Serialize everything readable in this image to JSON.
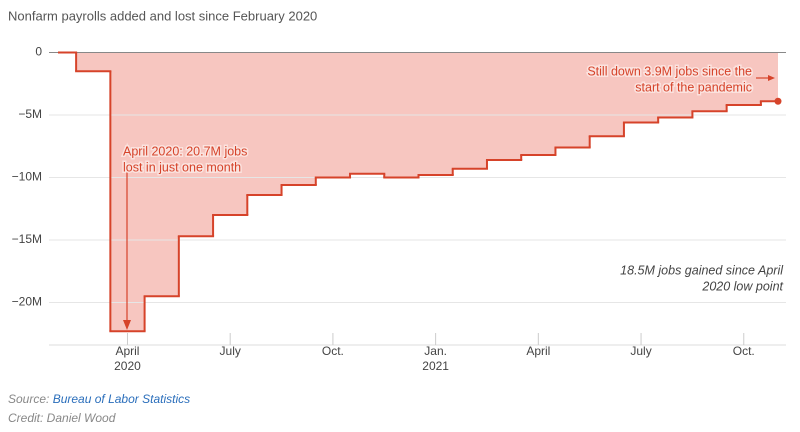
{
  "chart_data": {
    "type": "step-area",
    "title": "Nonfarm payrolls added and lost since February 2020",
    "categories": [
      null,
      null,
      "April",
      null,
      null,
      "July",
      null,
      null,
      "Oct.",
      null,
      null,
      "Jan.",
      null,
      null,
      "April",
      null,
      null,
      "July",
      null,
      null,
      "Oct.",
      null
    ],
    "category_years": [
      null,
      null,
      "2020",
      null,
      null,
      null,
      null,
      null,
      null,
      null,
      null,
      "2021",
      null,
      null,
      null,
      null,
      null,
      null,
      null,
      null,
      null,
      null
    ],
    "values": [
      0,
      -1.5,
      -22.3,
      -19.5,
      -14.7,
      -13.0,
      -11.4,
      -10.6,
      -10.0,
      -9.7,
      -10.0,
      -9.8,
      -9.3,
      -8.6,
      -8.2,
      -7.6,
      -6.7,
      -5.6,
      -5.2,
      -4.7,
      -4.2,
      -3.9
    ],
    "color": "#d6432a",
    "fill_color": "#f7c6c0",
    "ylim": [
      -23.4,
      1
    ],
    "yticks": [
      0,
      {
        "value": -5,
        "label": "−5M"
      },
      {
        "value": -10,
        "label": "−10M"
      },
      {
        "value": -15,
        "label": "−15M"
      },
      {
        "value": -20,
        "label": "−20M"
      }
    ],
    "grid": true,
    "annotations": {
      "drop": [
        "April 2020: 20.7M jobs",
        "lost in just one month"
      ],
      "still_down": [
        "Still down 3.9M jobs since the",
        "start of the pandemic"
      ],
      "gained": [
        "18.5M jobs gained since April",
        "2020 low point"
      ]
    },
    "source_prefix": "Source:",
    "source": "Bureau of Labor Statistics",
    "credit": "Credit: Daniel Wood"
  }
}
